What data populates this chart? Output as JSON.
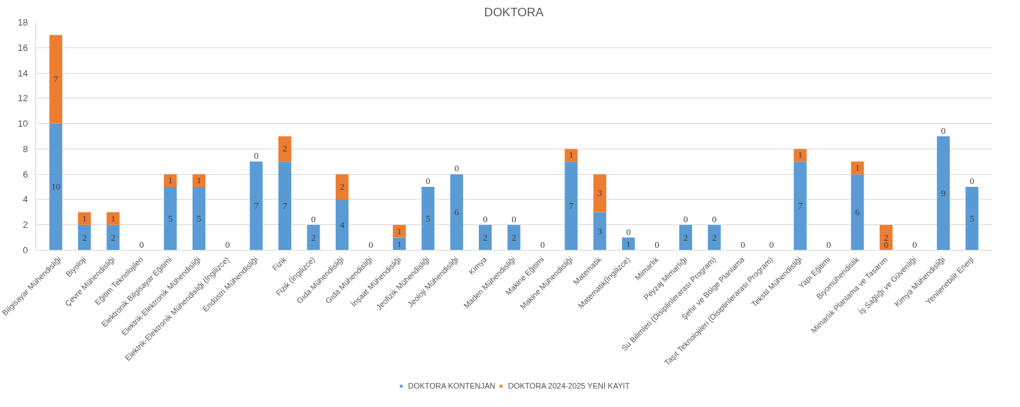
{
  "chart_data": {
    "type": "bar",
    "title": "DOKTORA",
    "stacked": true,
    "categories": [
      "Bilgisayar Mühendisliği",
      "Biyoloji",
      "Çevre Mühendisliği",
      "Eğitim Teknolojileri",
      "Elektronik Bilgisayar Eğitimi",
      "Elektrik-Elektronik Mühendisliği",
      "Elektrik-Elektronik Mühendisliği (İngilizce)",
      "Endüstri Mühendisliği",
      "Fizik",
      "Fizik (İngilizce)",
      "Gıda Mühendisliği",
      "Gıda Mühendisliği",
      "İnşaat Mühendisliği",
      "Jeofizik Mühendisliği",
      "Jeoloji Mühendisliği",
      "Kimya",
      "Maden Mühendisliği",
      "Makine Eğitimi",
      "Makine Mühendisliği",
      "Matematik",
      "Matematik(İngilizce)",
      "Mimarlık",
      "Peyzaj Mimarlığı",
      "Su Bilimleri (Disiplinlerarası Program)",
      "Şehir ve Bölge Planlama",
      "Taşıt Teknolojileri (Disiplinlerarası Program)",
      "Tekstil Mühendisliği",
      "Yapı Eğitimi",
      "Biyomühendislik",
      "Mimarlık Planlama ve Tasarım",
      "İş Sağlığı ve Güvenliği",
      "Kimya Mühendisliği",
      "Yenilenebilir Enerji"
    ],
    "series": [
      {
        "name": "DOKTORA KONTENJAN",
        "color": "#5b9bd5",
        "values": [
          10,
          2,
          2,
          0,
          5,
          5,
          0,
          7,
          7,
          2,
          4,
          0,
          1,
          5,
          6,
          2,
          2,
          0,
          7,
          3,
          1,
          0,
          2,
          2,
          0,
          0,
          7,
          0,
          6,
          0,
          0,
          9,
          5
        ],
        "value_labels": [
          "10",
          "2",
          "2",
          null,
          "5",
          "5",
          null,
          "7",
          "7",
          "2",
          "4",
          null,
          "1",
          "5",
          "6",
          "2",
          "2",
          null,
          "7",
          "3",
          "1",
          null,
          "2",
          "2",
          null,
          null,
          "7",
          null,
          "6",
          "0",
          null,
          "9",
          "5"
        ]
      },
      {
        "name": "DOKTORA 2024-2025 YENİ KAYIT",
        "color": "#ed7d31",
        "values": [
          7,
          1,
          1,
          0,
          1,
          1,
          0,
          0,
          2,
          0,
          2,
          0,
          1,
          0,
          0,
          0,
          0,
          0,
          1,
          3,
          0,
          0,
          0,
          0,
          0,
          0,
          1,
          0,
          1,
          2,
          0,
          0,
          0
        ],
        "value_labels": [
          "7",
          "1",
          "1",
          "0",
          "1",
          "1",
          "0",
          "0",
          "2",
          "0",
          "2",
          "0",
          "1",
          "0",
          "0",
          "0",
          "0",
          "0",
          "1",
          "3",
          "0",
          "0",
          "0",
          "0",
          "0",
          "0",
          "1",
          "0",
          "1",
          "2",
          "0",
          "0",
          "0"
        ]
      }
    ],
    "ylim": [
      0,
      18
    ],
    "yticks": [
      0,
      2,
      4,
      6,
      8,
      10,
      12,
      14,
      16,
      18
    ],
    "grid": "y",
    "legend": "bottom"
  }
}
